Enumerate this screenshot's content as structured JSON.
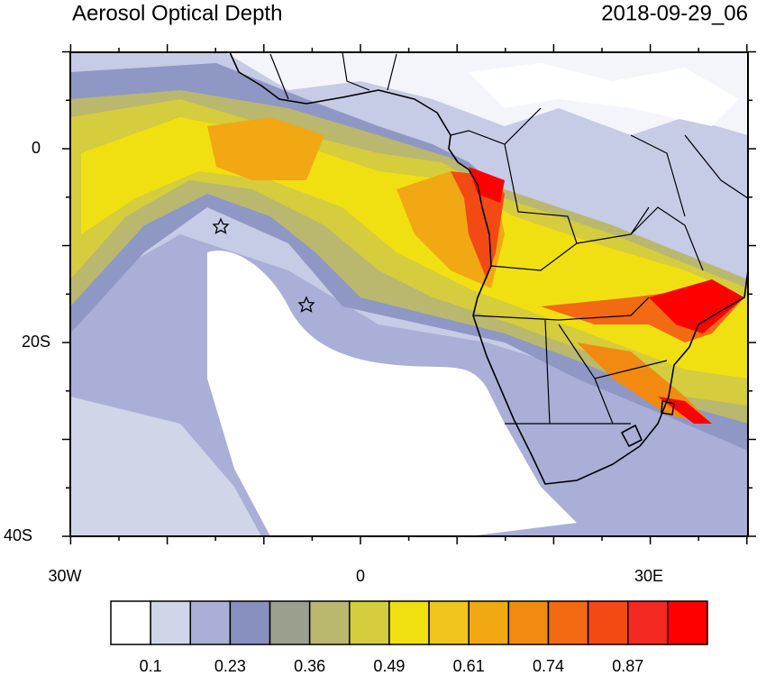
{
  "header": {
    "title": "Aerosol Optical Depth",
    "time": "2018-09-29_06"
  },
  "axes": {
    "lat_labels": [
      "0",
      "20S",
      "40S"
    ],
    "lon_labels": [
      "30W",
      "0",
      "30E"
    ]
  },
  "colorbar": {
    "colors": [
      "#ffffff",
      "#d0d5e8",
      "#a9afd6",
      "#8890c0",
      "#9ba08e",
      "#b9b86e",
      "#d5cc3e",
      "#f0e012",
      "#f2c41e",
      "#f2a812",
      "#f28a12",
      "#f26a12",
      "#f24a12",
      "#f42a22",
      "#ff0000"
    ],
    "labels": [
      0.1,
      0.23,
      0.36,
      0.49,
      0.61,
      0.74,
      0.87
    ]
  }
}
